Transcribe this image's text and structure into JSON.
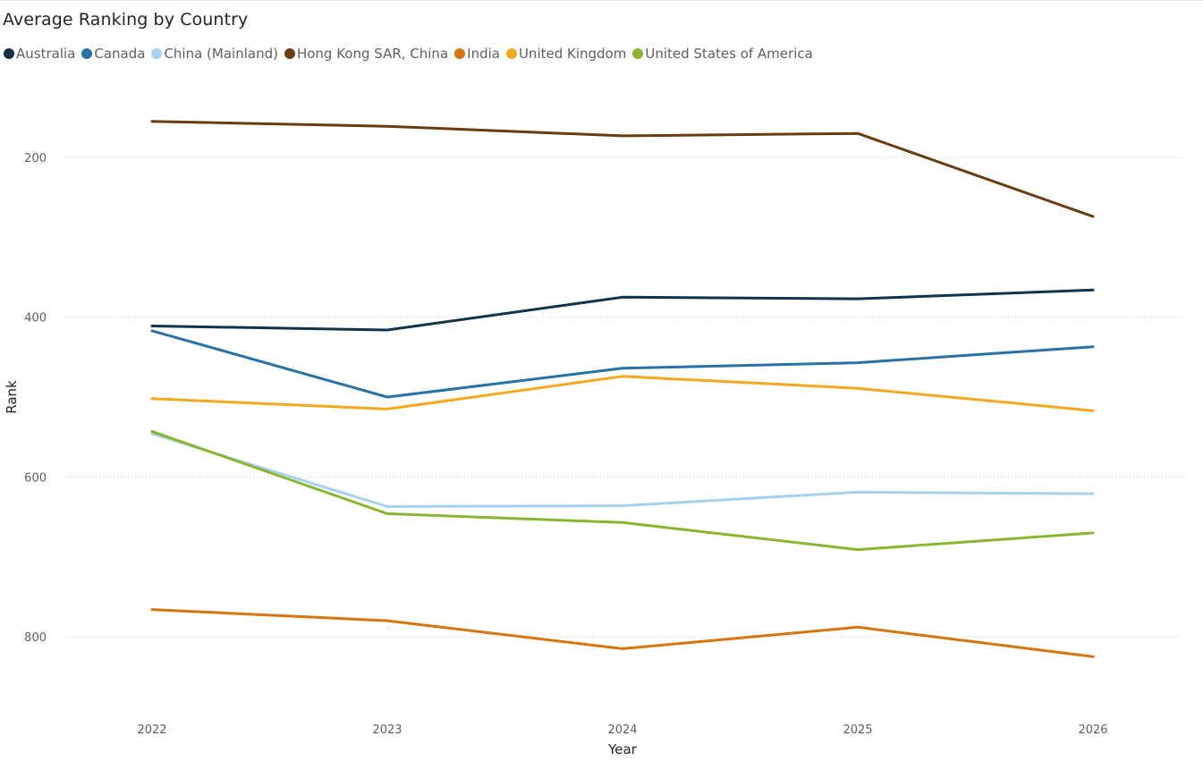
{
  "chart_data": {
    "type": "line",
    "title": "Average Ranking by Country",
    "xlabel": "Year",
    "ylabel": "Rank",
    "x": [
      "2022",
      "2023",
      "2024",
      "2025",
      "2026"
    ],
    "y_ticks": [
      200,
      400,
      600,
      800
    ],
    "ylim": [
      110,
      870
    ],
    "y_reversed": true,
    "grid": true,
    "legend_position": "top-left",
    "series": [
      {
        "name": "Australia",
        "color": "#12334a",
        "values": [
          411,
          416,
          375,
          377,
          366
        ]
      },
      {
        "name": "Canada",
        "color": "#2872a8",
        "values": [
          417,
          500,
          464,
          457,
          437
        ]
      },
      {
        "name": "China (Mainland)",
        "color": "#a6d2f0",
        "values": [
          546,
          637,
          636,
          619,
          621
        ]
      },
      {
        "name": "Hong Kong SAR, China",
        "color": "#6a3c0e",
        "values": [
          155,
          161,
          173,
          170,
          274
        ]
      },
      {
        "name": "India",
        "color": "#d9740d",
        "values": [
          766,
          780,
          815,
          788,
          825
        ]
      },
      {
        "name": "United Kingdom",
        "color": "#f4a81d",
        "values": [
          502,
          515,
          474,
          489,
          517
        ]
      },
      {
        "name": "United States of America",
        "color": "#8ab52f",
        "values": [
          543,
          646,
          657,
          691,
          670
        ]
      }
    ]
  }
}
